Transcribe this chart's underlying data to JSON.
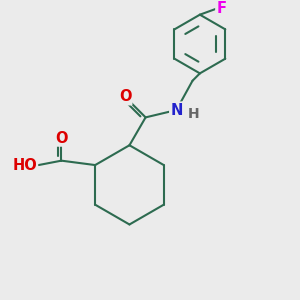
{
  "background_color": "#ebebeb",
  "bond_color": "#2d6b50",
  "bond_width": 1.5,
  "atom_colors": {
    "O": "#dd0000",
    "N": "#2222cc",
    "F": "#ee00ee",
    "H": "#666666",
    "C": "#2d6b50"
  },
  "font_size": 10.5,
  "figsize": [
    3.0,
    3.0
  ],
  "dpi": 100
}
